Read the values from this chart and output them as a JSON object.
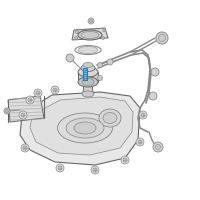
{
  "background_color": "#ffffff",
  "line_color": "#888888",
  "dark_line": "#666666",
  "fill_tank": "#e8e8e8",
  "fill_mid": "#e0e0e0",
  "fill_dark": "#d8d8d8",
  "highlight_color": "#5bb8e8",
  "highlight_dark": "#2a7aaa",
  "fig_size": [
    2.0,
    2.0
  ],
  "dpi": 100
}
